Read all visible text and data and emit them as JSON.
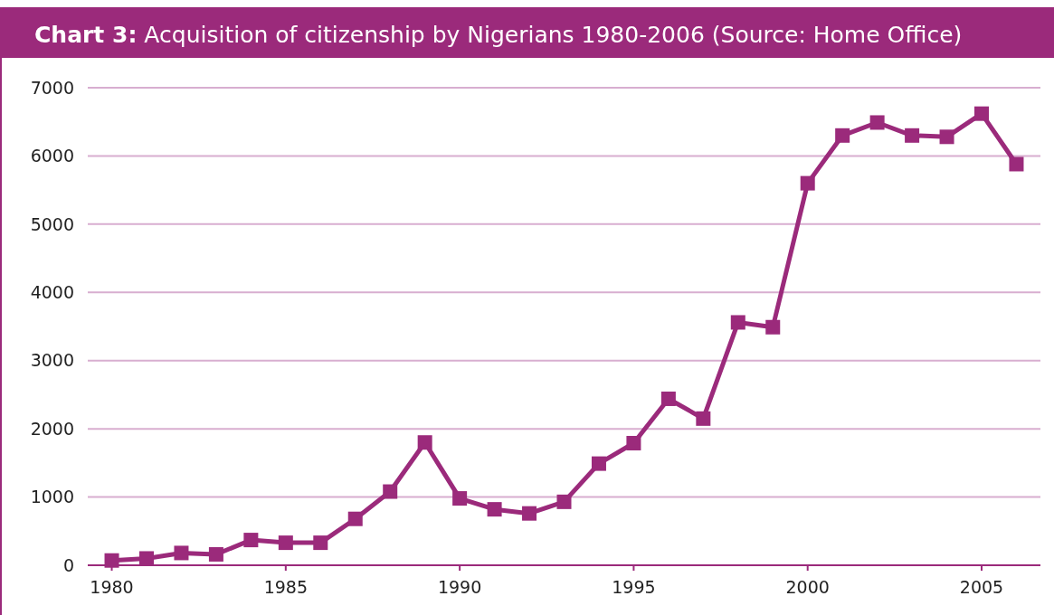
{
  "chart_data": {
    "type": "line",
    "title": "Chart 3: Acquisition of citizenship by Nigerians 1980-2006 (Source: Home Office)",
    "categories": [
      "1980",
      null,
      null,
      null,
      null,
      "1985",
      null,
      null,
      null,
      null,
      "1990",
      null,
      null,
      null,
      null,
      "1995",
      null,
      null,
      null,
      null,
      "2000",
      null,
      null,
      null,
      null,
      "2005",
      null
    ],
    "series": [
      {
        "color": "#9b2a7b",
        "values": [
          70,
          100,
          180,
          160,
          370,
          330,
          330,
          680,
          1080,
          1800,
          980,
          820,
          760,
          930,
          1490,
          1790,
          2440,
          2150,
          3560,
          3490,
          5600,
          6300,
          6490,
          6300,
          6280,
          6620,
          5880
        ]
      }
    ],
    "ylim": [
      0,
      7000
    ],
    "yticks": [
      0,
      1000,
      2000,
      3000,
      4000,
      5000,
      6000,
      7000
    ],
    "grid": "y",
    "marker": "square",
    "line_style": "solid"
  }
}
